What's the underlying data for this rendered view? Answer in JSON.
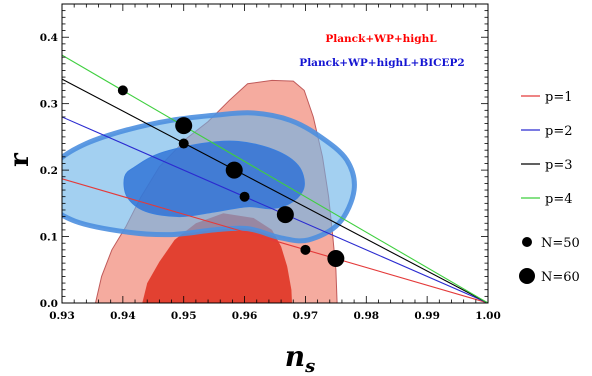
{
  "chart_data": {
    "type": "scatter",
    "xlabel": "n",
    "xlabel_sub": "s",
    "ylabel": "r",
    "xlim": [
      0.93,
      1.0
    ],
    "ylim": [
      0.0,
      0.45
    ],
    "xticks": [
      0.93,
      0.94,
      0.95,
      0.96,
      0.97,
      0.98,
      0.99,
      1.0
    ],
    "xtick_labels": [
      "0.93",
      "0.94",
      "0.95",
      "0.96",
      "0.97",
      "0.98",
      "0.99",
      "1.00"
    ],
    "yticks": [
      0.0,
      0.1,
      0.2,
      0.3,
      0.4
    ],
    "ytick_labels": [
      "0.0",
      "0.1",
      "0.2",
      "0.3",
      "0.4"
    ],
    "grid": false,
    "annotations": [
      {
        "text": "Planck+WP+highL",
        "color": "#ff0000"
      },
      {
        "text": "Planck+WP+highL+BICEP2",
        "color": "#1414d2"
      }
    ],
    "lines": [
      {
        "name": "p=1",
        "color": "#e43a3a",
        "x": [
          0.93,
          1.0
        ],
        "y": [
          0.187,
          0.0
        ]
      },
      {
        "name": "p=2",
        "color": "#2b2bd0",
        "x": [
          0.93,
          1.0
        ],
        "y": [
          0.28,
          0.0
        ]
      },
      {
        "name": "p=3",
        "color": "#000000",
        "x": [
          0.93,
          1.0
        ],
        "y": [
          0.337,
          0.0
        ]
      },
      {
        "name": "p=4",
        "color": "#3fcf3f",
        "x": [
          0.93,
          1.0
        ],
        "y": [
          0.373,
          0.0
        ]
      }
    ],
    "points": [
      {
        "name": "N=50",
        "x": [
          0.94,
          0.95,
          0.96,
          0.97
        ],
        "y": [
          0.32,
          0.24,
          0.16,
          0.08
        ]
      },
      {
        "name": "N=60",
        "x": [
          0.95,
          0.9583,
          0.9667,
          0.975
        ],
        "y": [
          0.267,
          0.2,
          0.133,
          0.067
        ]
      }
    ],
    "contours": [
      {
        "name": "Planck+WP+highL 95%",
        "color": "#f4a69a",
        "points": [
          [
            0.9355,
            0.0
          ],
          [
            0.9365,
            0.04
          ],
          [
            0.9382,
            0.08
          ],
          [
            0.9405,
            0.115
          ],
          [
            0.943,
            0.16
          ],
          [
            0.946,
            0.205
          ],
          [
            0.9505,
            0.248
          ],
          [
            0.954,
            0.273
          ],
          [
            0.9575,
            0.305
          ],
          [
            0.9605,
            0.33
          ],
          [
            0.9645,
            0.335
          ],
          [
            0.968,
            0.334
          ],
          [
            0.9698,
            0.32
          ],
          [
            0.9713,
            0.28
          ],
          [
            0.9728,
            0.22
          ],
          [
            0.9738,
            0.16
          ],
          [
            0.9745,
            0.1
          ],
          [
            0.975,
            0.05
          ],
          [
            0.9752,
            0.0
          ]
        ]
      },
      {
        "name": "Planck+WP+highL 68%",
        "color": "#e03b2b",
        "points": [
          [
            0.9432,
            0.0
          ],
          [
            0.944,
            0.03
          ],
          [
            0.946,
            0.062
          ],
          [
            0.9485,
            0.095
          ],
          [
            0.952,
            0.12
          ],
          [
            0.9565,
            0.135
          ],
          [
            0.9615,
            0.128
          ],
          [
            0.9645,
            0.11
          ],
          [
            0.966,
            0.085
          ],
          [
            0.967,
            0.055
          ],
          [
            0.9677,
            0.02
          ],
          [
            0.9678,
            0.0
          ]
        ]
      },
      {
        "name": "Planck+WP+highL+BICEP2 95%",
        "color": "#6bb3e8",
        "points": [
          [
            0.9283,
            0.19
          ],
          [
            0.928,
            0.15
          ],
          [
            0.9322,
            0.123
          ],
          [
            0.9405,
            0.107
          ],
          [
            0.948,
            0.103
          ],
          [
            0.955,
            0.11
          ],
          [
            0.9605,
            0.112
          ],
          [
            0.966,
            0.098
          ],
          [
            0.9705,
            0.095
          ],
          [
            0.9755,
            0.12
          ],
          [
            0.978,
            0.17
          ],
          [
            0.9768,
            0.215
          ],
          [
            0.9725,
            0.25
          ],
          [
            0.9675,
            0.275
          ],
          [
            0.9615,
            0.286
          ],
          [
            0.9555,
            0.283
          ],
          [
            0.948,
            0.275
          ],
          [
            0.9405,
            0.26
          ],
          [
            0.934,
            0.24
          ],
          [
            0.9295,
            0.215
          ]
        ]
      },
      {
        "name": "Planck+WP+highL+BICEP2 68%",
        "color": "#2a6fd6",
        "points": [
          [
            0.9403,
            0.19
          ],
          [
            0.9407,
            0.16
          ],
          [
            0.9437,
            0.138
          ],
          [
            0.9493,
            0.13
          ],
          [
            0.955,
            0.137
          ],
          [
            0.9605,
            0.145
          ],
          [
            0.9645,
            0.142
          ],
          [
            0.968,
            0.153
          ],
          [
            0.9698,
            0.176
          ],
          [
            0.9688,
            0.207
          ],
          [
            0.965,
            0.23
          ],
          [
            0.959,
            0.243
          ],
          [
            0.953,
            0.24
          ],
          [
            0.946,
            0.225
          ],
          [
            0.942,
            0.205
          ]
        ]
      }
    ],
    "legend": {
      "placement": "right",
      "items": [
        {
          "label": "p=1",
          "kind": "line",
          "color": "#e43a3a"
        },
        {
          "label": "p=2",
          "kind": "line",
          "color": "#2b2bd0"
        },
        {
          "label": "p=3",
          "kind": "line",
          "color": "#000000"
        },
        {
          "label": "p=4",
          "kind": "line",
          "color": "#3fcf3f"
        },
        {
          "label": "N=50",
          "kind": "small-dot",
          "color": "#000000"
        },
        {
          "label": "N=60",
          "kind": "large-dot",
          "color": "#000000"
        }
      ]
    }
  }
}
